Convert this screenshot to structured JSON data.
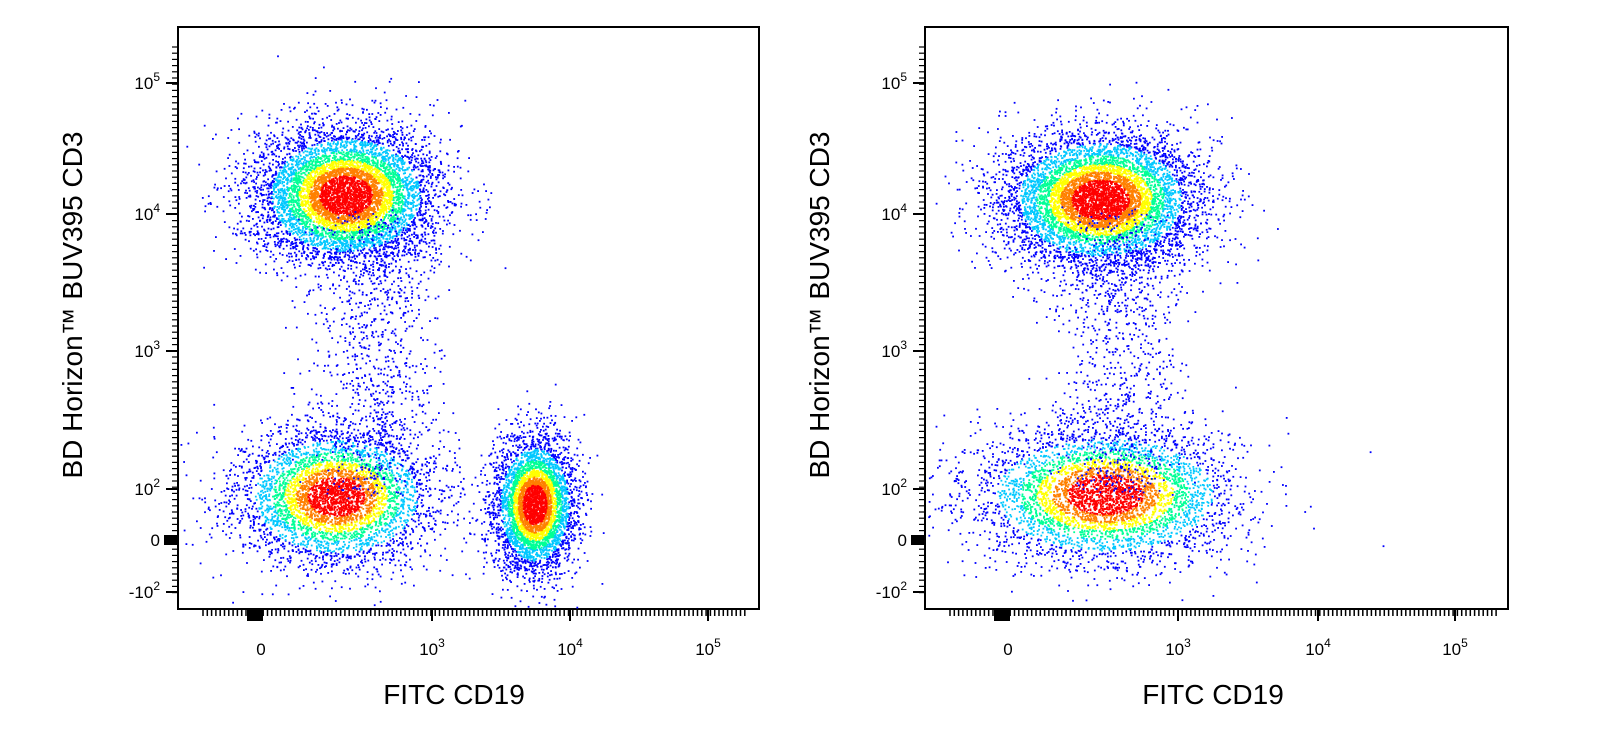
{
  "chart_data": [
    {
      "type": "scatter",
      "subtype": "flow-cytometry-density-plot",
      "xlabel": "FITC  CD19",
      "ylabel": "BD Horizon™ BUV395  CD3",
      "x_scale": "biexponential",
      "y_scale": "biexponential",
      "xlim": [
        -100,
        200000
      ],
      "ylim": [
        -150,
        250000
      ],
      "x_ticks": [
        {
          "value": 0,
          "base": "0",
          "exp": ""
        },
        {
          "value": 1000,
          "base": "10",
          "exp": "3"
        },
        {
          "value": 10000,
          "base": "10",
          "exp": "4"
        },
        {
          "value": 100000,
          "base": "10",
          "exp": "5"
        }
      ],
      "y_ticks": [
        {
          "value": 100000,
          "base": "10",
          "exp": "5"
        },
        {
          "value": 10000,
          "base": "10",
          "exp": "4"
        },
        {
          "value": 1000,
          "base": "10",
          "exp": "3"
        },
        {
          "value": 100,
          "base": "10",
          "exp": "2"
        },
        {
          "value": 0,
          "base": "0",
          "exp": ""
        },
        {
          "value": -100,
          "base": "-10",
          "exp": "2"
        }
      ],
      "color_scale": [
        "#0000ff",
        "#00c8ff",
        "#00ff96",
        "#ffff00",
        "#ff8000",
        "#ff0000"
      ],
      "populations": [
        {
          "name": "",
          "x_center": 150,
          "y_center": 14000,
          "x_spread": 0.55,
          "y_spread": 0.35,
          "density": "high"
        },
        {
          "name": "",
          "x_center": 120,
          "y_center": 80,
          "x_spread": 0.6,
          "y_spread": 0.35,
          "density": "medium"
        },
        {
          "name": "",
          "x_center": 5500,
          "y_center": 60,
          "x_spread": 0.25,
          "y_spread": 0.35,
          "density": "medium"
        }
      ]
    },
    {
      "type": "scatter",
      "subtype": "flow-cytometry-density-plot",
      "xlabel": "FITC  CD19",
      "ylabel": "BD Horizon™ BUV395  CD3",
      "x_scale": "biexponential",
      "y_scale": "biexponential",
      "xlim": [
        -100,
        200000
      ],
      "ylim": [
        -150,
        250000
      ],
      "x_ticks": [
        {
          "value": 0,
          "base": "0",
          "exp": ""
        },
        {
          "value": 1000,
          "base": "10",
          "exp": "3"
        },
        {
          "value": 10000,
          "base": "10",
          "exp": "4"
        },
        {
          "value": 100000,
          "base": "10",
          "exp": "5"
        }
      ],
      "y_ticks": [
        {
          "value": 100000,
          "base": "10",
          "exp": "5"
        },
        {
          "value": 10000,
          "base": "10",
          "exp": "4"
        },
        {
          "value": 1000,
          "base": "10",
          "exp": "3"
        },
        {
          "value": 100,
          "base": "10",
          "exp": "2"
        },
        {
          "value": 0,
          "base": "0",
          "exp": ""
        },
        {
          "value": -100,
          "base": "-10",
          "exp": "2"
        }
      ],
      "color_scale": [
        "#0000ff",
        "#00c8ff",
        "#00ff96",
        "#ffff00",
        "#ff8000",
        "#ff0000"
      ],
      "populations": [
        {
          "name": "",
          "x_center": 180,
          "y_center": 13000,
          "x_spread": 0.6,
          "y_spread": 0.35,
          "density": "high"
        },
        {
          "name": "",
          "x_center": 200,
          "y_center": 85,
          "x_spread": 0.8,
          "y_spread": 0.35,
          "density": "medium"
        }
      ]
    }
  ]
}
